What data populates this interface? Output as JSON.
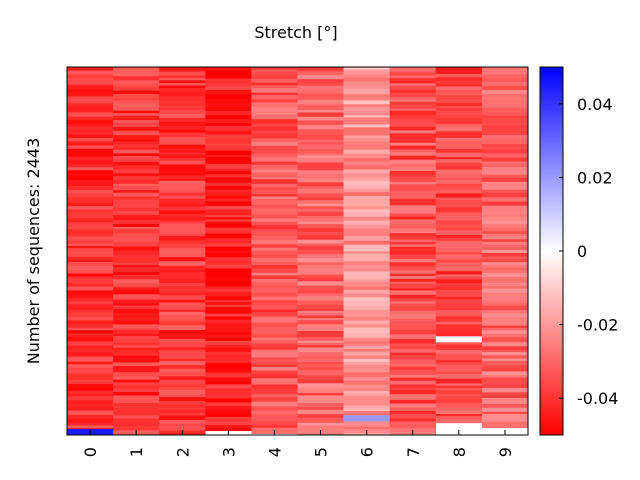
{
  "chart_data": {
    "type": "heatmap",
    "title": "Stretch [°]",
    "ylabel": "Number of sequences: 2443",
    "xlabel": "",
    "columns": [
      "0",
      "1",
      "2",
      "3",
      "4",
      "5",
      "6",
      "7",
      "8",
      "9"
    ],
    "row_count": 2443,
    "colorbar": {
      "range": [
        -0.05,
        0.05
      ],
      "ticks": [
        0.04,
        0.02,
        0,
        -0.02,
        -0.04
      ],
      "tick_labels": [
        "0.04",
        "0.02",
        "0",
        "-0.02",
        "-0.04"
      ],
      "colormap": [
        "#ff0000",
        "#ffffff",
        "#0000ff"
      ]
    },
    "column_typical_values": [
      -0.041,
      -0.04,
      -0.039,
      -0.044,
      -0.033,
      -0.03,
      -0.02,
      -0.034,
      -0.036,
      -0.03
    ],
    "notable_cells": [
      {
        "column": "0",
        "row_fraction": 0.992,
        "value": 0.045
      },
      {
        "column": "6",
        "row_fraction": 0.955,
        "value": 0.02
      },
      {
        "column": "8",
        "row_fraction": 0.74,
        "value": 0.0
      }
    ]
  }
}
